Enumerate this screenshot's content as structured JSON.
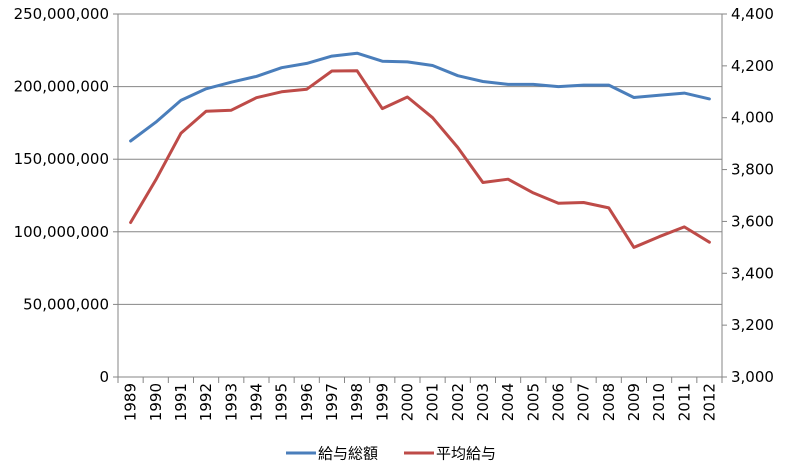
{
  "chart_data": {
    "type": "line",
    "x": [
      "1989",
      "1990",
      "1991",
      "1992",
      "1993",
      "1994",
      "1995",
      "1996",
      "1997",
      "1998",
      "1999",
      "2000",
      "2001",
      "2002",
      "2003",
      "2004",
      "2005",
      "2006",
      "2007",
      "2008",
      "2009",
      "2010",
      "2011",
      "2012"
    ],
    "series": [
      {
        "name": "給与総額",
        "axis": "left",
        "color": "#4a7ebb",
        "values": [
          162500000,
          175500000,
          190500000,
          198500000,
          203000000,
          207000000,
          213000000,
          216000000,
          221000000,
          223000000,
          217500000,
          217000000,
          214500000,
          207500000,
          203500000,
          201500000,
          201500000,
          200000000,
          201000000,
          201000000,
          192500000,
          194000000,
          195500000,
          191500000
        ]
      },
      {
        "name": "平均給与",
        "axis": "right",
        "color": "#be4b48",
        "values": [
          3596,
          3760,
          3940,
          4025,
          4029,
          4077,
          4100,
          4110,
          4180,
          4181,
          4035,
          4080,
          4000,
          3885,
          3750,
          3763,
          3710,
          3670,
          3673,
          3652,
          3500,
          3541,
          3579,
          3520
        ]
      }
    ],
    "y_left": {
      "ylim": [
        0,
        250000000
      ],
      "ticks": [
        "0",
        "50,000,000",
        "100,000,000",
        "150,000,000",
        "200,000,000",
        "250,000,000"
      ]
    },
    "y_right": {
      "ylim": [
        3000,
        4400
      ],
      "ticks": [
        "3,000",
        "3,200",
        "3,400",
        "3,600",
        "3,800",
        "4,000",
        "4,200",
        "4,400"
      ]
    },
    "grid": true,
    "legend": "bottom"
  }
}
